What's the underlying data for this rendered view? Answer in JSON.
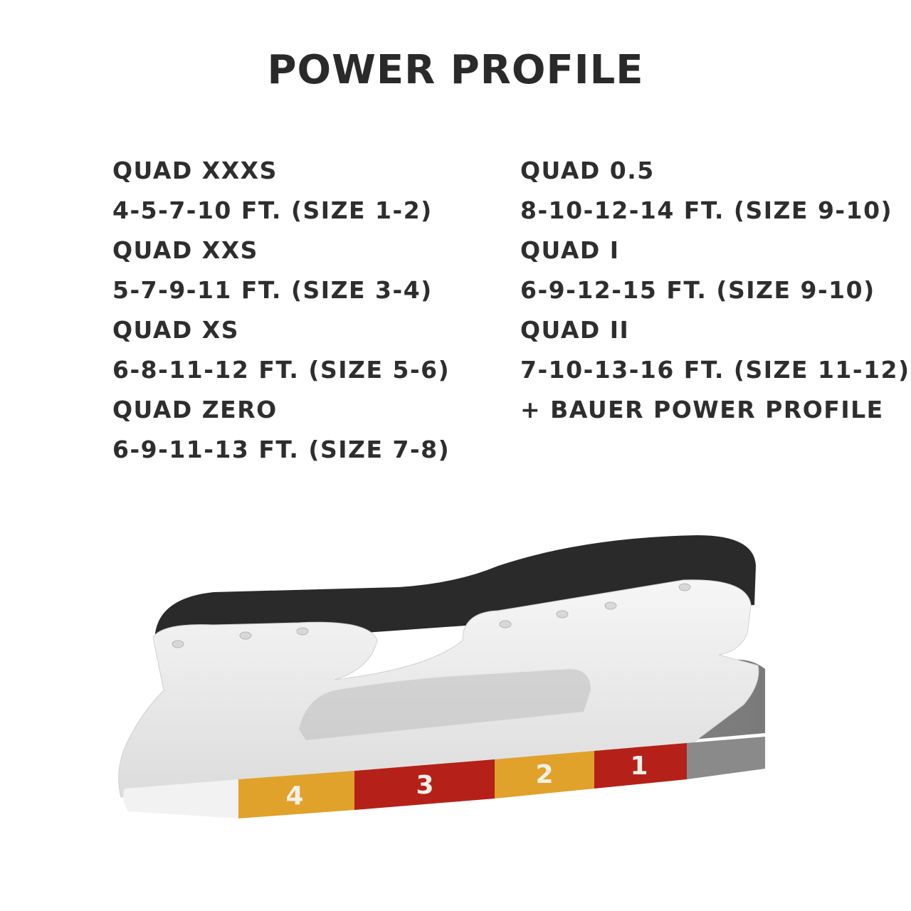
{
  "title": "POWER PROFILE",
  "left_column": [
    "QUAD XXXS",
    "4-5-7-10 FT. (SIZE 1-2)",
    "QUAD XXS",
    "5-7-9-11 FT. (SIZE 3-4)",
    "QUAD XS",
    "6-8-11-12 FT. (SIZE 5-6)",
    "QUAD ZERO",
    "6-9-11-13 FT. (SIZE 7-8)"
  ],
  "right_column": [
    "QUAD 0.5",
    "8-10-12-14 FT. (SIZE 9-10)",
    "QUAD I",
    "6-9-12-15 FT. (SIZE 9-10)",
    "QUAD II",
    "7-10-13-16 FT. (SIZE 11-12)",
    "+ BAUER POWER PROFILE"
  ],
  "blade_zones": [
    {
      "label": "4",
      "color": "#e0a22a"
    },
    {
      "label": "3",
      "color": "#b52118"
    },
    {
      "label": "2",
      "color": "#e0a22a"
    },
    {
      "label": "1",
      "color": "#b52118"
    }
  ]
}
